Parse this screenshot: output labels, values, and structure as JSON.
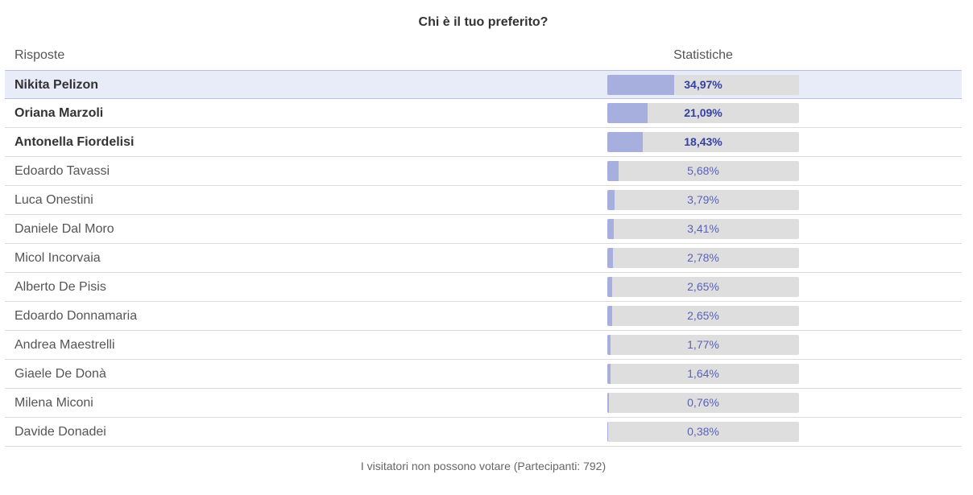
{
  "poll": {
    "title": "Chi è il tuo preferito?",
    "header_answers": "Risposte",
    "header_stats": "Statistiche",
    "footer": "I visitatori non possono votare (Partecipanti: 792)",
    "colors": {
      "bar_fill": "#a7afdf",
      "bar_track": "#dedede",
      "highlight_row": "#e8ebf8",
      "percent_text": "#3540a0"
    },
    "rows": [
      {
        "label": "Nikita Pelizon",
        "percent_text": "34,97%",
        "percent": 34.97
      },
      {
        "label": "Oriana Marzoli",
        "percent_text": "21,09%",
        "percent": 21.09
      },
      {
        "label": "Antonella Fiordelisi",
        "percent_text": "18,43%",
        "percent": 18.43
      },
      {
        "label": "Edoardo Tavassi",
        "percent_text": "5,68%",
        "percent": 5.68
      },
      {
        "label": "Luca Onestini",
        "percent_text": "3,79%",
        "percent": 3.79
      },
      {
        "label": "Daniele Dal Moro",
        "percent_text": "3,41%",
        "percent": 3.41
      },
      {
        "label": "Micol Incorvaia",
        "percent_text": "2,78%",
        "percent": 2.78
      },
      {
        "label": "Alberto De Pisis",
        "percent_text": "2,65%",
        "percent": 2.65
      },
      {
        "label": "Edoardo Donnamaria",
        "percent_text": "2,65%",
        "percent": 2.65
      },
      {
        "label": "Andrea Maestrelli",
        "percent_text": "1,77%",
        "percent": 1.77
      },
      {
        "label": "Giaele De Donà",
        "percent_text": "1,64%",
        "percent": 1.64
      },
      {
        "label": "Milena Miconi",
        "percent_text": "0,76%",
        "percent": 0.76
      },
      {
        "label": "Davide Donadei",
        "percent_text": "0,38%",
        "percent": 0.38
      }
    ]
  }
}
